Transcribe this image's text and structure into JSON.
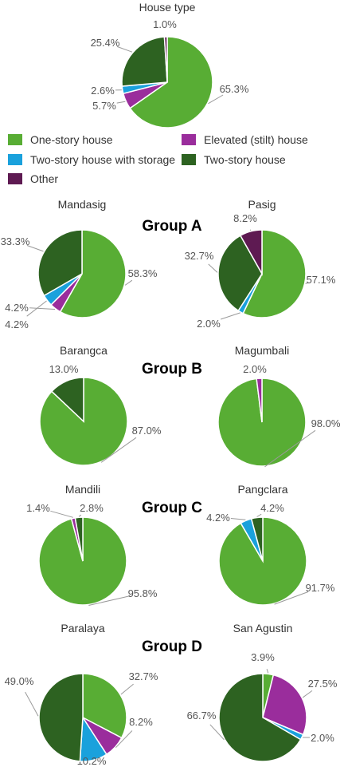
{
  "colors": {
    "one_story": "#58ad34",
    "elevated": "#9a2d9c",
    "two_story_storage": "#1aa1dc",
    "two_story": "#2d6221",
    "other": "#5e1a52",
    "label_text": "#555555",
    "title_text": "#333333",
    "group_text": "#000000"
  },
  "legend": {
    "items": [
      {
        "key": "one_story",
        "label": "One-story house"
      },
      {
        "key": "elevated",
        "label": "Elevated (stilt) house"
      },
      {
        "key": "two_story_storage",
        "label": "Two-story house with storage"
      },
      {
        "key": "two_story",
        "label": "Two-story house"
      },
      {
        "key": "other",
        "label": "Other"
      }
    ]
  },
  "group_labels": [
    "Group A",
    "Group B",
    "Group C",
    "Group D"
  ],
  "chart_data": [
    {
      "type": "pie",
      "title": "House type",
      "slices": [
        {
          "key": "one_story",
          "value": 65.3,
          "label": "65.3%"
        },
        {
          "key": "elevated",
          "value": 5.7,
          "label": "5.7%"
        },
        {
          "key": "two_story_storage",
          "value": 2.6,
          "label": "2.6%"
        },
        {
          "key": "two_story",
          "value": 25.4,
          "label": "25.4%"
        },
        {
          "key": "other",
          "value": 1.0,
          "label": "1.0%"
        }
      ]
    },
    {
      "type": "pie",
      "title": "Mandasig",
      "group": "Group A",
      "slices": [
        {
          "key": "one_story",
          "value": 58.3,
          "label": "58.3%"
        },
        {
          "key": "elevated",
          "value": 4.2,
          "label": "4.2%"
        },
        {
          "key": "two_story_storage",
          "value": 4.2,
          "label": "4.2%"
        },
        {
          "key": "two_story",
          "value": 33.3,
          "label": "33.3%"
        }
      ]
    },
    {
      "type": "pie",
      "title": "Pasig",
      "group": "Group A",
      "slices": [
        {
          "key": "one_story",
          "value": 57.1,
          "label": "57.1%"
        },
        {
          "key": "two_story_storage",
          "value": 2.0,
          "label": "2.0%"
        },
        {
          "key": "two_story",
          "value": 32.7,
          "label": "32.7%"
        },
        {
          "key": "other",
          "value": 8.2,
          "label": "8.2%"
        }
      ]
    },
    {
      "type": "pie",
      "title": "Barangca",
      "group": "Group B",
      "slices": [
        {
          "key": "one_story",
          "value": 87.0,
          "label": "87.0%"
        },
        {
          "key": "two_story",
          "value": 13.0,
          "label": "13.0%"
        }
      ]
    },
    {
      "type": "pie",
      "title": "Magumbali",
      "group": "Group B",
      "slices": [
        {
          "key": "one_story",
          "value": 98.0,
          "label": "98.0%"
        },
        {
          "key": "elevated",
          "value": 2.0,
          "label": "2.0%"
        }
      ]
    },
    {
      "type": "pie",
      "title": "Mandili",
      "group": "Group C",
      "slices": [
        {
          "key": "one_story",
          "value": 95.8,
          "label": "95.8%"
        },
        {
          "key": "elevated",
          "value": 1.4,
          "label": "1.4%"
        },
        {
          "key": "two_story",
          "value": 2.8,
          "label": "2.8%"
        }
      ]
    },
    {
      "type": "pie",
      "title": "Pangclara",
      "group": "Group C",
      "slices": [
        {
          "key": "one_story",
          "value": 91.7,
          "label": "91.7%"
        },
        {
          "key": "two_story_storage",
          "value": 4.2,
          "label": "4.2%"
        },
        {
          "key": "two_story",
          "value": 4.2,
          "label": "4.2%"
        }
      ]
    },
    {
      "type": "pie",
      "title": "Paralaya",
      "group": "Group D",
      "slices": [
        {
          "key": "one_story",
          "value": 32.7,
          "label": "32.7%"
        },
        {
          "key": "elevated",
          "value": 8.2,
          "label": "8.2%"
        },
        {
          "key": "two_story_storage",
          "value": 10.2,
          "label": "10.2%"
        },
        {
          "key": "two_story",
          "value": 49.0,
          "label": "49.0%"
        }
      ]
    },
    {
      "type": "pie",
      "title": "San Agustin",
      "group": "Group D",
      "slices": [
        {
          "key": "one_story",
          "value": 3.9,
          "label": "3.9%"
        },
        {
          "key": "elevated",
          "value": 27.5,
          "label": "27.5%"
        },
        {
          "key": "two_story_storage",
          "value": 2.0,
          "label": "2.0%"
        },
        {
          "key": "two_story",
          "value": 66.7,
          "label": "66.7%"
        }
      ]
    }
  ]
}
